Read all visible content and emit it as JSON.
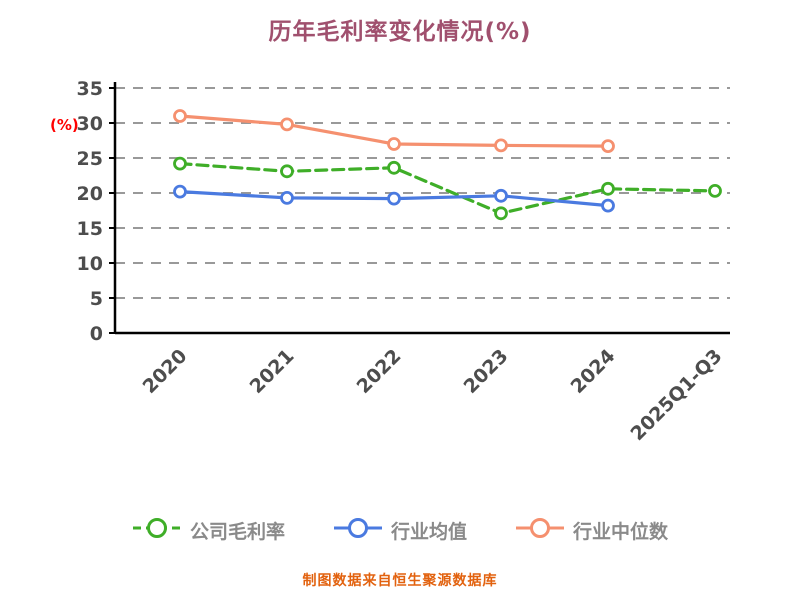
{
  "title": "历年毛利率变化情况(%)",
  "footer": "制图数据来自恒生聚源数据库",
  "chart_data": {
    "type": "line",
    "title": "历年毛利率变化情况(%)",
    "xlabel": "",
    "ylabel": "(%)",
    "ylabel_color": "#ff0000",
    "ylim": [
      0,
      35
    ],
    "yticks": [
      0,
      5,
      10,
      15,
      20,
      25,
      30,
      35
    ],
    "grid": true,
    "grid_style": "dashed",
    "legend_position": "bottom",
    "categories": [
      "2020",
      "2021",
      "2022",
      "2023",
      "2024",
      "2025Q1-Q3"
    ],
    "series": [
      {
        "name": "公司毛利率",
        "color": "#3fae28",
        "line_style": "dashed",
        "marker": "circle-ring",
        "values": [
          24.2,
          23.1,
          23.6,
          17.1,
          20.6,
          20.3
        ]
      },
      {
        "name": "行业均值",
        "color": "#4a7ae0",
        "line_style": "solid",
        "marker": "circle-ring",
        "values": [
          20.2,
          19.3,
          19.2,
          19.6,
          18.2,
          null
        ]
      },
      {
        "name": "行业中位数",
        "color": "#f5906f",
        "line_style": "solid",
        "marker": "circle-ring",
        "values": [
          31.0,
          29.8,
          27.0,
          26.8,
          26.7,
          null
        ]
      }
    ]
  },
  "colors": {
    "title": "#a0506e",
    "axis": "#000000",
    "gridline": "#999999",
    "tick_label": "#4d4d4d",
    "legend_label": "#8a8a8a",
    "footer": "#e2620f"
  }
}
